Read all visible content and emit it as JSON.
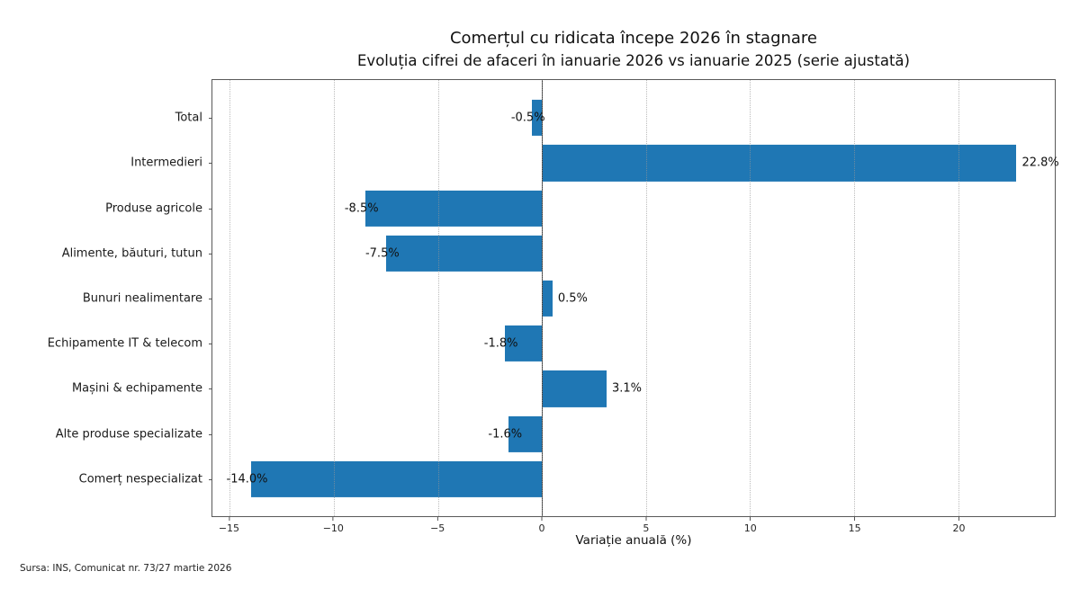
{
  "chart_data": {
    "type": "bar",
    "orientation": "horizontal",
    "title": "Comerțul cu ridicata începe 2026 în stagnare",
    "subtitle": "Evoluția cifrei de afaceri în ianuarie 2026 vs ianuarie 2025 (serie ajustată)",
    "xlabel": "Variație anuală (%)",
    "source_note": "Sursa: INS, Comunicat nr. 73/27 martie 2026",
    "categories": [
      "Total",
      "Intermedieri",
      "Produse agricole",
      "Alimente, băuturi, tutun",
      "Bunuri nealimentare",
      "Echipamente IT & telecom",
      "Mașini & echipamente",
      "Alte produse specializate",
      "Comerț nespecializat"
    ],
    "values": [
      -0.5,
      22.8,
      -8.5,
      -7.5,
      0.5,
      -1.8,
      3.1,
      -1.6,
      -14.0
    ],
    "value_labels": [
      "-0.5%",
      "22.8%",
      "-8.5%",
      "-7.5%",
      "0.5%",
      "-1.8%",
      "3.1%",
      "-1.6%",
      "-14.0%"
    ],
    "xticks": [
      -15,
      -10,
      -5,
      0,
      5,
      10,
      15,
      20
    ],
    "xtick_labels": [
      "−15",
      "−10",
      "−5",
      "0",
      "5",
      "10",
      "15",
      "20"
    ],
    "xlim": [
      -15.84,
      24.64
    ],
    "bar_color": "#1f77b4",
    "grid": "vertical-dotted",
    "zero_line": true,
    "legend": "none"
  }
}
